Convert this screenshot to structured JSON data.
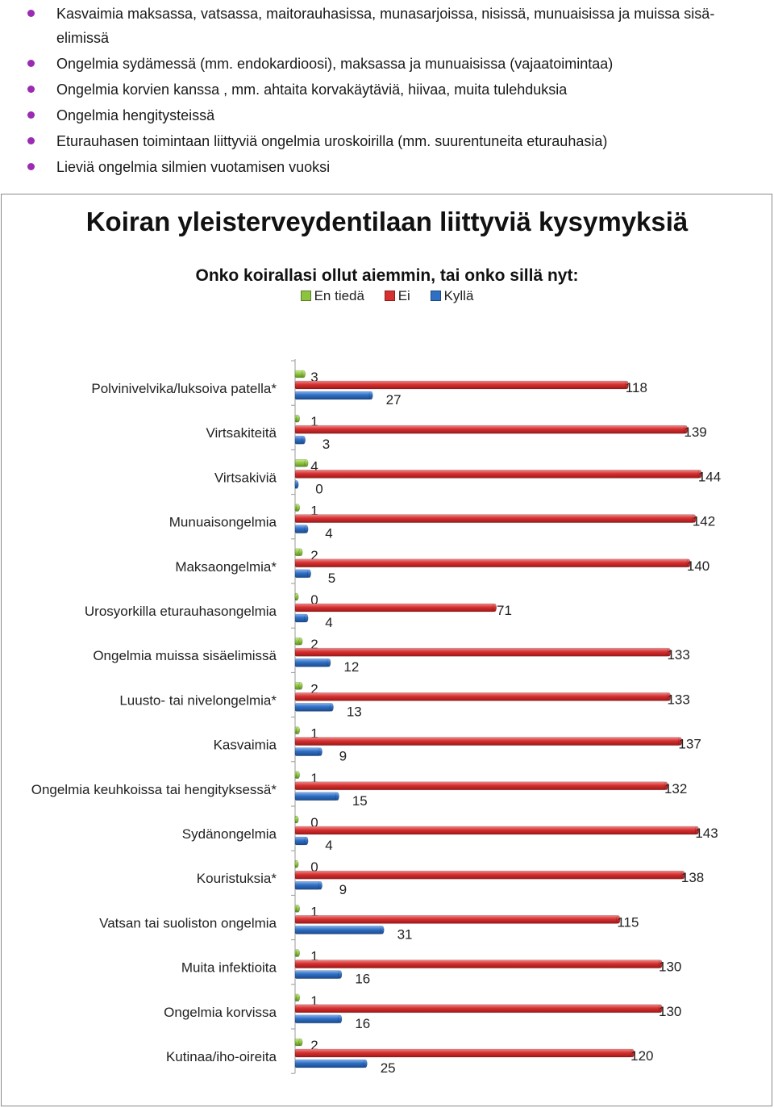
{
  "bullets": [
    "Kasvaimia maksassa, vatsassa, maitorauhasissa, munasarjoissa, nisissä, munuaisissa ja muissa sisä-elimissä",
    "Ongelmia sydämessä (mm. endokardioosi), maksassa ja munuaisissa (vajaatoimintaa)",
    "Ongelmia korvien kanssa , mm. ahtaita korvakäytäviä, hiivaa, muita tulehduksia",
    "Ongelmia hengitysteissä",
    "Eturauhasen toimintaan liittyviä ongelmia uroskoirilla (mm. suurentuneita eturauhasia)",
    "Lieviä ongelmia silmien vuotamisen vuoksi"
  ],
  "colors": {
    "bullet": "#9b2bb3",
    "en_tieda": "#8cc43f",
    "ei": "#d63030",
    "kylla": "#2f6fc4"
  },
  "chart_data": {
    "type": "bar",
    "orientation": "horizontal",
    "title": "Koiran yleisterveydentilaan liittyviä kysymyksiä",
    "subtitle": "Onko koirallasi ollut aiemmin, tai onko sillä nyt:",
    "legend_position": "top",
    "xlim": [
      0,
      144
    ],
    "grid": false,
    "categories": [
      "Polvinivelvika/luksoiva patella*",
      "Virtsakiteitä",
      "Virtsakiviä",
      "Munuaisongelmia",
      "Maksaongelmia*",
      "Urosyorkilla eturauhasongelmia",
      "Ongelmia muissa sisäelimissä",
      "Luusto- tai nivelongelmia*",
      "Kasvaimia",
      "Ongelmia keuhkoissa tai hengityksessä*",
      "Sydänongelmia",
      "Kouristuksia*",
      "Vatsan tai suoliston ongelmia",
      "Muita infektioita",
      "Ongelmia korvissa",
      "Kutinaa/iho-oireita"
    ],
    "series": [
      {
        "name": "En tiedä",
        "values": [
          3,
          1,
          4,
          1,
          2,
          0,
          2,
          2,
          1,
          1,
          0,
          0,
          1,
          1,
          1,
          2
        ]
      },
      {
        "name": "Ei",
        "values": [
          118,
          139,
          144,
          142,
          140,
          71,
          133,
          133,
          137,
          132,
          143,
          138,
          115,
          130,
          130,
          120
        ]
      },
      {
        "name": "Kyllä",
        "values": [
          27,
          3,
          0,
          4,
          5,
          4,
          12,
          13,
          9,
          15,
          4,
          9,
          31,
          16,
          16,
          25
        ]
      }
    ]
  }
}
